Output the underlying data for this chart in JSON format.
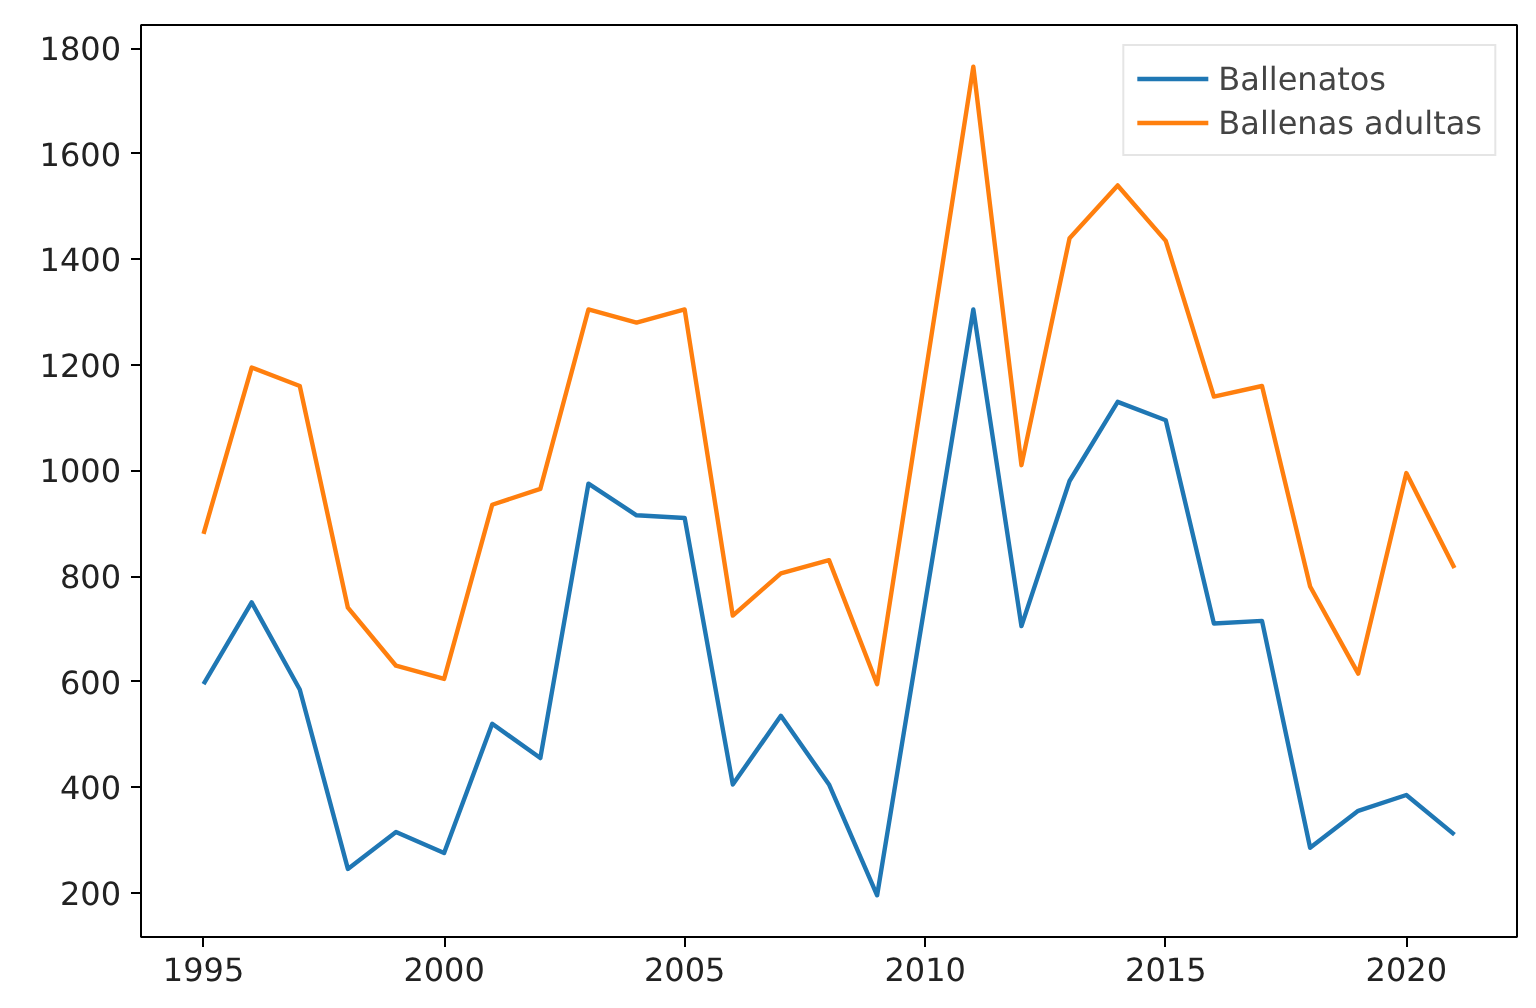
{
  "chart_data": {
    "type": "line",
    "x": [
      1995,
      1996,
      1997,
      1998,
      1999,
      2000,
      2001,
      2002,
      2003,
      2004,
      2005,
      2006,
      2007,
      2008,
      2009,
      2010,
      2011,
      2012,
      2013,
      2014,
      2015,
      2016,
      2017,
      2018,
      2019,
      2020,
      2021
    ],
    "series": [
      {
        "name": "Ballenatos",
        "color": "#1f77b4",
        "values": [
          595,
          750,
          585,
          245,
          315,
          275,
          520,
          455,
          975,
          915,
          910,
          405,
          535,
          405,
          195,
          750,
          1305,
          705,
          980,
          1130,
          1095,
          710,
          715,
          285,
          355,
          385,
          310
        ]
      },
      {
        "name": "Ballenas adultas",
        "color": "#ff7f0e",
        "values": [
          880,
          1195,
          1160,
          740,
          630,
          605,
          935,
          965,
          1305,
          1280,
          1305,
          725,
          805,
          830,
          595,
          1180,
          1765,
          1010,
          1440,
          1540,
          1435,
          1140,
          1160,
          780,
          615,
          995,
          815
        ]
      }
    ],
    "xlim": [
      1993.7,
      2022.3
    ],
    "ylim": [
      116,
      1844
    ],
    "xticks": [
      1995,
      2000,
      2005,
      2010,
      2015,
      2020
    ],
    "yticks": [
      200,
      400,
      600,
      800,
      1000,
      1200,
      1400,
      1600,
      1800
    ],
    "grid": false,
    "legend": "top right",
    "marker": "none",
    "line_style": "solid"
  }
}
